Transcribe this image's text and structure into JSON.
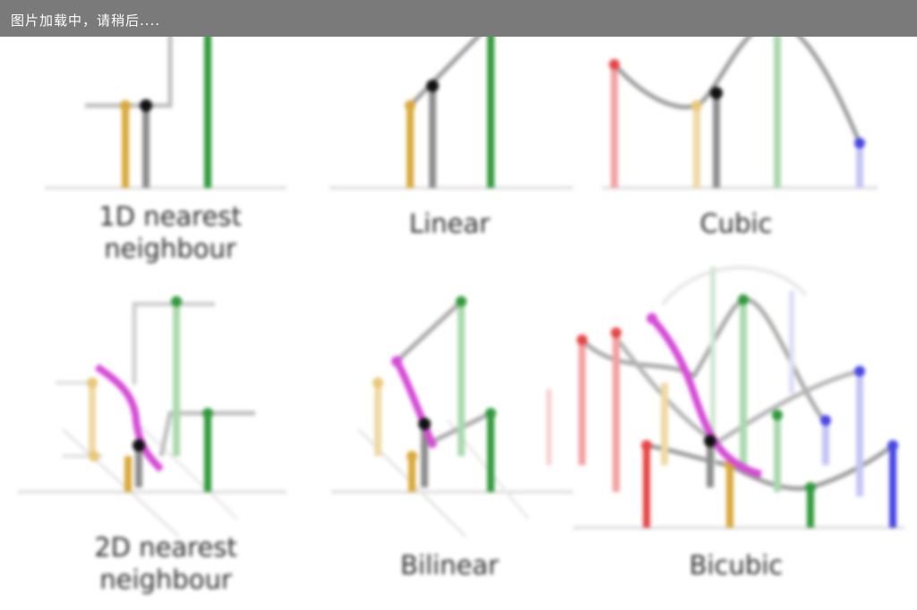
{
  "loading_text": "图片加载中，请稍后....",
  "colors": {
    "nearest_gold": "#d9a93a",
    "query_gray": "#8c8c8c",
    "green": "#2f9a3a",
    "red": "#e84545",
    "blue": "#4646e6",
    "magenta": "#d64bd6",
    "curve": "#9a9a9a",
    "axis": "#d9d9d9"
  },
  "panels": [
    {
      "id": "1d-nearest",
      "caption_lines": [
        "1D nearest",
        "neighbour"
      ]
    },
    {
      "id": "linear",
      "caption_lines": [
        "Linear"
      ]
    },
    {
      "id": "cubic",
      "caption_lines": [
        "Cubic"
      ]
    },
    {
      "id": "2d-nearest",
      "caption_lines": [
        "2D nearest",
        "neighbour"
      ]
    },
    {
      "id": "bilinear",
      "caption_lines": [
        "Bilinear"
      ]
    },
    {
      "id": "bicubic",
      "caption_lines": [
        "Bicubic"
      ]
    }
  ]
}
